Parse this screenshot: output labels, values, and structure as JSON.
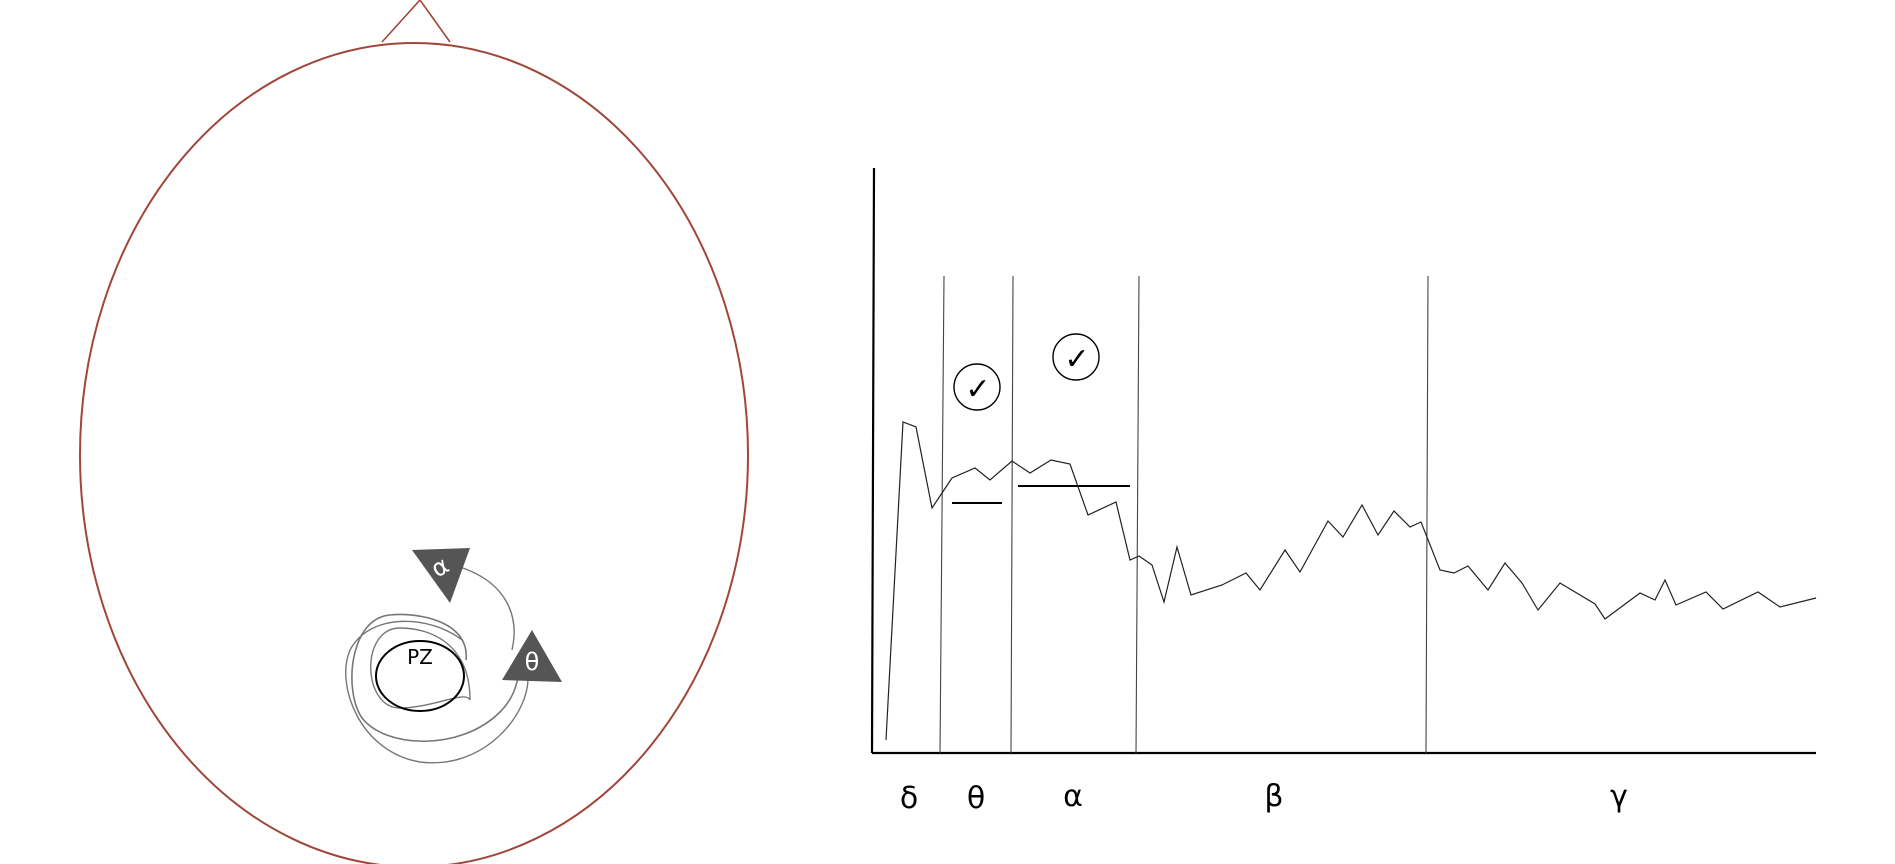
{
  "head": {
    "outline_color": "#a0463a",
    "electrode": {
      "label": "PZ"
    },
    "markers": [
      {
        "id": "alpha",
        "label": "α",
        "color": "#555555"
      },
      {
        "id": "theta",
        "label": "θ",
        "color": "#555555"
      }
    ]
  },
  "spectrum": {
    "bands": [
      {
        "id": "delta",
        "label": "δ"
      },
      {
        "id": "theta",
        "label": "θ",
        "checked": true,
        "check_glyph": "✓"
      },
      {
        "id": "alpha",
        "label": "α",
        "checked": true,
        "check_glyph": "✓"
      },
      {
        "id": "beta",
        "label": "β"
      },
      {
        "id": "gamma",
        "label": "γ"
      }
    ]
  }
}
